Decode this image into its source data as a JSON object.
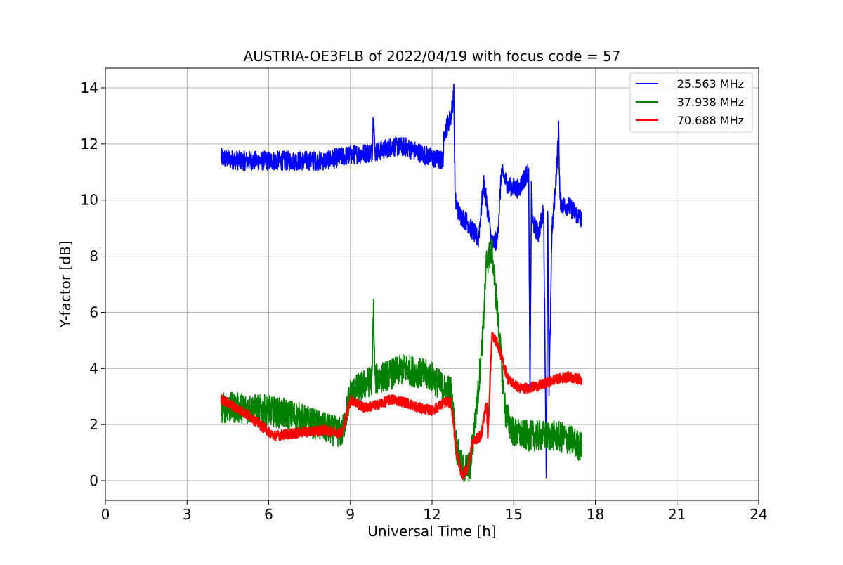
{
  "chart_data": {
    "type": "line",
    "title": "AUSTRIA-OE3FLB of 2022/04/19 with focus code = 57",
    "xlabel": "Universal Time [h]",
    "ylabel": "Y-factor [dB]",
    "xlim": [
      0,
      24
    ],
    "ylim": [
      -0.7,
      14.7
    ],
    "xticks": [
      0,
      3,
      6,
      9,
      12,
      15,
      18,
      21,
      24
    ],
    "xtick_labels": [
      "0",
      "3",
      "6",
      "9",
      "12",
      "15",
      "18",
      "21",
      "24"
    ],
    "yticks": [
      0,
      2,
      4,
      6,
      8,
      10,
      12,
      14
    ],
    "ytick_labels": [
      "0",
      "2",
      "4",
      "6",
      "8",
      "10",
      "12",
      "14"
    ],
    "grid": true,
    "legend_position": "top-right",
    "series": [
      {
        "name": "25.563 MHz",
        "color": "#0000ff",
        "noise": 0.35,
        "x": [
          4.25,
          5.0,
          6.0,
          7.0,
          8.0,
          9.0,
          9.8,
          9.85,
          9.9,
          10.5,
          11.0,
          11.5,
          12.0,
          12.4,
          12.45,
          12.7,
          12.8,
          12.85,
          13.0,
          13.3,
          13.7,
          13.9,
          14.05,
          14.2,
          14.4,
          14.55,
          14.8,
          15.2,
          15.4,
          15.55,
          15.6,
          15.65,
          15.7,
          15.9,
          16.1,
          16.2,
          16.25,
          16.3,
          16.4,
          16.5,
          16.6,
          16.65,
          16.7,
          16.8,
          17.0,
          17.5
        ],
        "y": [
          11.5,
          11.4,
          11.4,
          11.4,
          11.4,
          11.6,
          11.7,
          13.2,
          11.7,
          11.9,
          11.9,
          11.7,
          11.5,
          11.4,
          12.4,
          13.0,
          13.8,
          10.0,
          9.5,
          9.2,
          8.6,
          10.6,
          9.6,
          8.4,
          8.6,
          11.0,
          10.5,
          10.4,
          10.8,
          11.0,
          3.0,
          10.4,
          9.2,
          8.8,
          9.6,
          0.1,
          9.5,
          3.0,
          8.8,
          10.0,
          11.5,
          12.5,
          10.0,
          9.8,
          9.8,
          9.3
        ]
      },
      {
        "name": "37.938 MHz",
        "color": "#008000",
        "noise": 0.55,
        "x": [
          4.25,
          5.0,
          6.0,
          7.0,
          8.0,
          8.7,
          9.0,
          9.8,
          9.85,
          9.9,
          10.5,
          11.0,
          12.0,
          12.4,
          12.7,
          12.9,
          13.1,
          13.4,
          13.7,
          13.9,
          14.0,
          14.2,
          14.4,
          14.7,
          15.0,
          15.5,
          16.0,
          16.5,
          17.0,
          17.5
        ],
        "y": [
          2.6,
          2.6,
          2.5,
          2.3,
          1.9,
          1.7,
          3.1,
          3.6,
          6.4,
          3.6,
          3.8,
          4.0,
          3.7,
          3.3,
          3.2,
          1.2,
          0.4,
          0.5,
          3.2,
          5.8,
          7.8,
          8.2,
          6.0,
          2.4,
          1.7,
          1.6,
          1.6,
          1.6,
          1.5,
          1.2
        ]
      },
      {
        "name": "70.688 MHz",
        "color": "#ff0000",
        "noise": 0.18,
        "x": [
          4.25,
          4.8,
          5.3,
          5.8,
          6.2,
          7.0,
          8.0,
          8.7,
          9.0,
          9.5,
          10.0,
          10.5,
          11.0,
          11.5,
          12.0,
          12.5,
          12.7,
          12.9,
          13.1,
          13.3,
          13.5,
          13.8,
          14.0,
          14.05,
          14.2,
          14.4,
          14.8,
          15.2,
          15.5,
          16.0,
          16.5,
          17.0,
          17.5
        ],
        "y": [
          2.9,
          2.6,
          2.3,
          1.9,
          1.6,
          1.7,
          1.8,
          1.7,
          2.9,
          2.6,
          2.7,
          2.9,
          2.8,
          2.6,
          2.5,
          2.8,
          2.8,
          1.0,
          0.2,
          0.4,
          1.4,
          1.6,
          2.8,
          1.6,
          5.2,
          4.9,
          3.6,
          3.3,
          3.3,
          3.4,
          3.6,
          3.7,
          3.6
        ]
      }
    ]
  }
}
